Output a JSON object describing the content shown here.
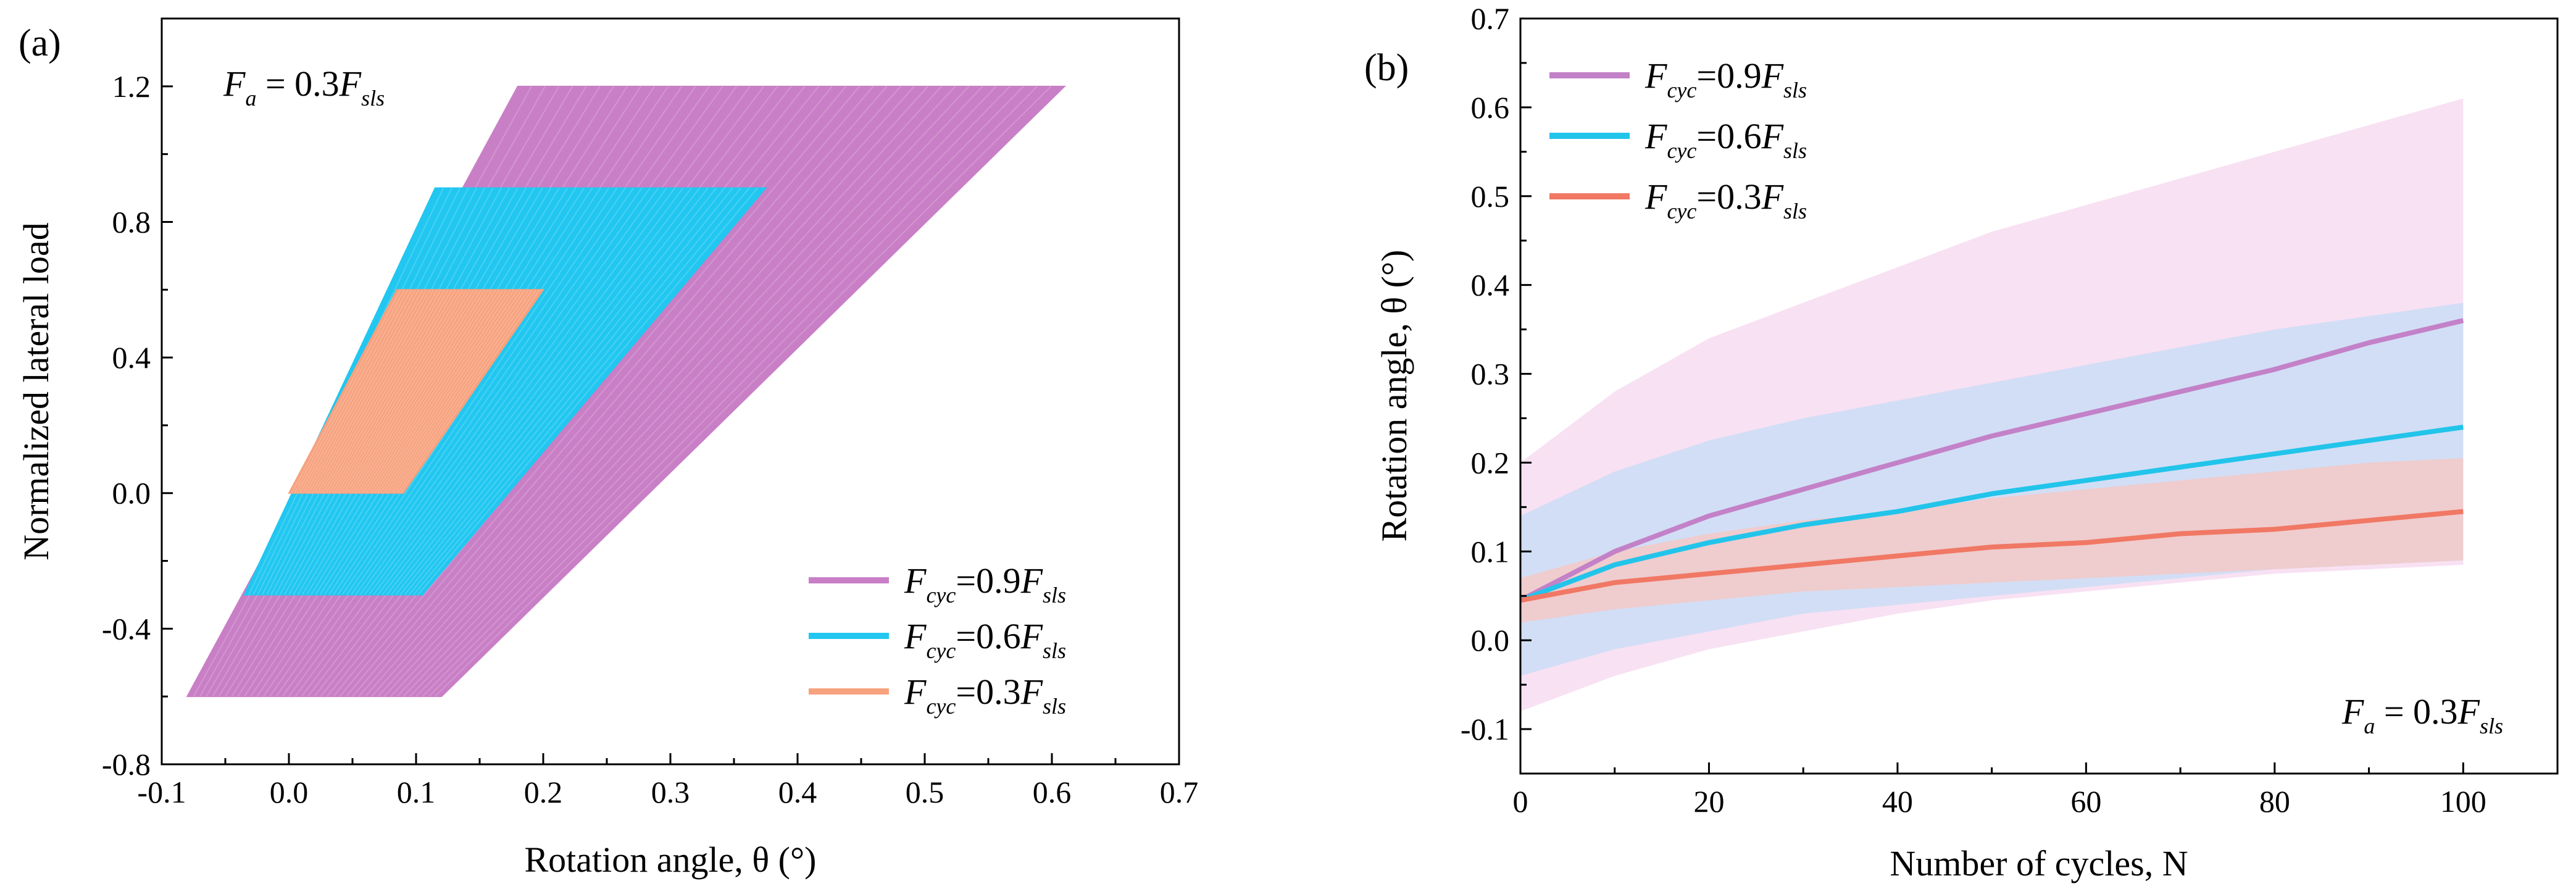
{
  "chart_data": [
    {
      "type": "area",
      "panel_label": "(a)",
      "annotation": {
        "base": "F",
        "sub": "a",
        "mid": " = 0.3",
        "base2": "F",
        "sub2": "sls"
      },
      "xlabel": "Rotation angle, θ (°)",
      "ylabel": "Normalized lateral load",
      "xlim": [
        -0.1,
        0.7
      ],
      "ylim": [
        -0.8,
        1.4
      ],
      "xticks": [
        "-0.1",
        "0.0",
        "0.1",
        "0.2",
        "0.3",
        "0.4",
        "0.5",
        "0.6",
        "0.7"
      ],
      "yticks": [
        "-0.8",
        "-0.4",
        "0.0",
        "0.4",
        "0.8",
        "1.2"
      ],
      "grid": false,
      "legend_position": "bottom-right",
      "series": [
        {
          "name": "Fcyc=0.9Fsls",
          "label": {
            "base": "F",
            "sub": "cyc",
            "mid": "=0.9",
            "base2": "F",
            "sub2": "sls"
          },
          "color": "#c97fc6",
          "loops": [
            [
              [
                -0.08,
                -0.6
              ],
              [
                0.12,
                -0.6
              ],
              [
                0.61,
                1.2
              ],
              [
                0.18,
                1.2
              ]
            ]
          ]
        },
        {
          "name": "Fcyc=0.6Fsls",
          "label": {
            "base": "F",
            "sub": "cyc",
            "mid": "=0.6",
            "base2": "F",
            "sub2": "sls"
          },
          "color": "#21c7f0",
          "loops": [
            [
              [
                -0.035,
                -0.3
              ],
              [
                0.105,
                -0.3
              ],
              [
                0.375,
                0.9
              ],
              [
                0.115,
                0.9
              ]
            ]
          ]
        },
        {
          "name": "Fcyc=0.3Fsls",
          "label": {
            "base": "F",
            "sub": "cyc",
            "mid": "=0.3",
            "base2": "F",
            "sub2": "sls"
          },
          "color": "#f7a27e",
          "loops": [
            [
              [
                0.0,
                0.0
              ],
              [
                0.09,
                0.0
              ],
              [
                0.2,
                0.6
              ],
              [
                0.085,
                0.6
              ]
            ]
          ]
        }
      ]
    },
    {
      "type": "line",
      "panel_label": "(b)",
      "annotation": {
        "base": "F",
        "sub": "a",
        "mid": " = 0.3",
        "base2": "F",
        "sub2": "sls"
      },
      "xlabel": "Number of cycles, N",
      "ylabel": "Rotation angle, θ (°)",
      "xlim": [
        0,
        110
      ],
      "ylim": [
        -0.15,
        0.7
      ],
      "xticks": [
        "0",
        "20",
        "40",
        "60",
        "80",
        "100"
      ],
      "yticks": [
        "-0.1",
        "0.0",
        "0.1",
        "0.2",
        "0.3",
        "0.4",
        "0.5",
        "0.6",
        "0.7"
      ],
      "grid": false,
      "legend_position": "top-left",
      "x": [
        0,
        10,
        20,
        30,
        40,
        50,
        60,
        70,
        80,
        90,
        100
      ],
      "series": [
        {
          "name": "Fcyc=0.9Fsls",
          "label": {
            "base": "F",
            "sub": "cyc",
            "mid": "=0.9",
            "base2": "F",
            "sub2": "sls"
          },
          "color": "#c381c8",
          "band_color": "#f6d7ef",
          "values": [
            0.045,
            0.1,
            0.14,
            0.17,
            0.2,
            0.23,
            0.255,
            0.28,
            0.305,
            0.335,
            0.36
          ],
          "band_upper": [
            0.2,
            0.28,
            0.34,
            0.38,
            0.42,
            0.46,
            0.49,
            0.52,
            0.55,
            0.58,
            0.61
          ],
          "band_lower": [
            -0.08,
            -0.04,
            -0.01,
            0.01,
            0.03,
            0.045,
            0.055,
            0.065,
            0.075,
            0.08,
            0.085
          ]
        },
        {
          "name": "Fcyc=0.6Fsls",
          "label": {
            "base": "F",
            "sub": "cyc",
            "mid": "=0.6",
            "base2": "F",
            "sub2": "sls"
          },
          "color": "#22c4ea",
          "band_color": "#c6dcf6",
          "values": [
            0.045,
            0.085,
            0.11,
            0.13,
            0.145,
            0.165,
            0.18,
            0.195,
            0.21,
            0.225,
            0.24
          ],
          "band_upper": [
            0.14,
            0.19,
            0.225,
            0.25,
            0.27,
            0.29,
            0.31,
            0.33,
            0.35,
            0.365,
            0.38
          ],
          "band_lower": [
            -0.04,
            -0.01,
            0.01,
            0.03,
            0.04,
            0.05,
            0.06,
            0.07,
            0.08,
            0.085,
            0.09
          ]
        },
        {
          "name": "Fcyc=0.3Fsls",
          "label": {
            "base": "F",
            "sub": "cyc",
            "mid": "=0.3",
            "base2": "F",
            "sub2": "sls"
          },
          "color": "#f07864",
          "band_color": "#f8c6c0",
          "values": [
            0.045,
            0.065,
            0.075,
            0.085,
            0.095,
            0.105,
            0.11,
            0.12,
            0.125,
            0.135,
            0.145
          ],
          "band_upper": [
            0.07,
            0.1,
            0.12,
            0.135,
            0.145,
            0.16,
            0.17,
            0.18,
            0.19,
            0.2,
            0.205
          ],
          "band_lower": [
            0.02,
            0.035,
            0.045,
            0.055,
            0.06,
            0.065,
            0.07,
            0.075,
            0.08,
            0.085,
            0.09
          ]
        }
      ]
    }
  ]
}
